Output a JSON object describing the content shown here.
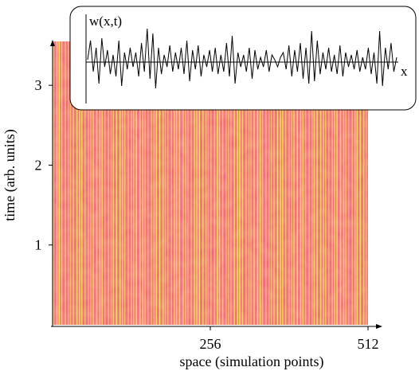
{
  "chart_data": [
    {
      "type": "heatmap",
      "title": "",
      "xlabel": "space (simulation points)",
      "ylabel": "time (arb. units)",
      "xlim": [
        0,
        512
      ],
      "ylim": [
        0,
        3.55
      ],
      "x_ticks": [
        256,
        512
      ],
      "y_ticks": [
        1,
        2,
        3
      ],
      "grid": false,
      "colors": {
        "low": "#e0457a",
        "mid": "#f26a8a",
        "high": "#ffe24a"
      },
      "description_values": {
        "stripes_across_space": 110,
        "pattern": "vertical stripes constant in time"
      }
    },
    {
      "type": "line",
      "title": "",
      "series_label": "w(x,t)",
      "xlabel": "x",
      "ylabel": "",
      "series": [
        {
          "name": "",
          "x": [
            0,
            1,
            2,
            3,
            4,
            5,
            6,
            7,
            8,
            9,
            10,
            11,
            12,
            13,
            14,
            15,
            16,
            17,
            18,
            19,
            20,
            21,
            22,
            23,
            24,
            25,
            26,
            27,
            28,
            29,
            30,
            31,
            32,
            33,
            34,
            35,
            36,
            37,
            38,
            39,
            40,
            41,
            42,
            43,
            44,
            45,
            46,
            47,
            48,
            49,
            50,
            51,
            52,
            53,
            54,
            55,
            56,
            57,
            58,
            59,
            60,
            61,
            62,
            63,
            64,
            65,
            66,
            67,
            68,
            69,
            70,
            71,
            72,
            73,
            74,
            75,
            76,
            77,
            78,
            79,
            80,
            81,
            82,
            83,
            84,
            85,
            86,
            87,
            88,
            89,
            90,
            91,
            92,
            93,
            94,
            95,
            96,
            97,
            98,
            99,
            100,
            101,
            102,
            103,
            104,
            105,
            106,
            107,
            108,
            109
          ],
          "values": [
            0.1,
            0.9,
            -0.4,
            0.6,
            -0.9,
            1.0,
            -0.2,
            0.5,
            -0.5,
            0.3,
            -0.6,
            0.9,
            -1.0,
            0.4,
            -0.3,
            0.6,
            -0.2,
            0.4,
            -0.6,
            0.8,
            -0.4,
            1.4,
            -0.7,
            1.2,
            -1.1,
            0.6,
            -0.5,
            0.3,
            -0.2,
            0.7,
            -0.4,
            0.4,
            -0.3,
            0.6,
            -0.5,
            0.9,
            -0.8,
            0.5,
            -0.3,
            0.7,
            -0.6,
            0.3,
            -0.2,
            0.5,
            -0.4,
            0.6,
            -0.5,
            0.3,
            -0.4,
            0.8,
            -0.6,
            1.1,
            -0.9,
            0.4,
            -0.2,
            0.3,
            -0.4,
            0.6,
            -0.7,
            0.5,
            -0.3,
            0.2,
            -0.2,
            0.5,
            -0.4,
            0.3,
            0.1,
            -0.2,
            0.2,
            0.4,
            -0.3,
            0.7,
            -0.6,
            0.5,
            -0.4,
            0.8,
            -0.7,
            0.6,
            -0.9,
            1.3,
            -0.8,
            0.9,
            -0.5,
            0.4,
            -0.3,
            0.6,
            -0.4,
            0.3,
            -0.5,
            0.7,
            -0.6,
            0.4,
            -0.2,
            0.3,
            -0.3,
            0.5,
            -0.4,
            0.2,
            -0.3,
            0.6,
            -0.5,
            0.4,
            -0.9,
            1.3,
            -1.0,
            0.6,
            -0.3,
            0.8,
            -0.4,
            0.2
          ]
        }
      ]
    }
  ]
}
